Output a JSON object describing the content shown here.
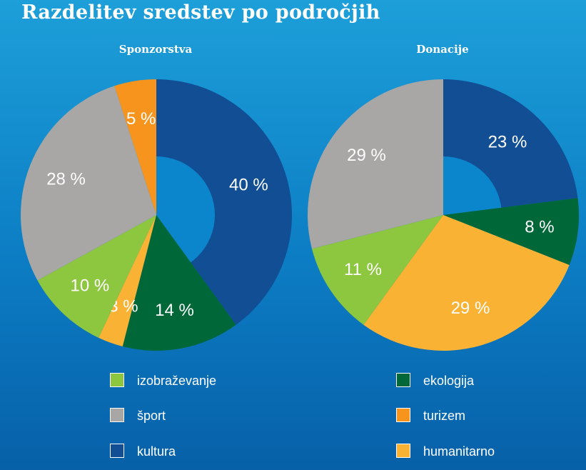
{
  "title": "Razdelitev sredstev po področjih",
  "colors": {
    "izobrazevanje": "#8dc63f",
    "sport": "#a9a7a5",
    "kultura": "#114e94",
    "ekologija": "#006838",
    "turizem": "#f7941d",
    "humanitarno": "#f9b233",
    "hole": "#0b86cc"
  },
  "legend": [
    {
      "label": "izobraževanje",
      "color": "#8dc63f"
    },
    {
      "label": "ekologija",
      "color": "#006838"
    },
    {
      "label": "šport",
      "color": "#a9a7a5"
    },
    {
      "label": "turizem",
      "color": "#f7941d"
    },
    {
      "label": "kultura",
      "color": "#114e94"
    },
    {
      "label": "humanitarno",
      "color": "#f9b233"
    }
  ],
  "chart_data": [
    {
      "type": "pie",
      "title": "Sponzorstva",
      "donut": true,
      "slices": [
        {
          "category": "kultura",
          "value": 40,
          "label": "40 %",
          "color": "#114e94"
        },
        {
          "category": "ekologija",
          "value": 14,
          "label": "14 %",
          "color": "#006838"
        },
        {
          "category": "humanitarno",
          "value": 3,
          "label": "3 %",
          "color": "#f9b233"
        },
        {
          "category": "izobraževanje",
          "value": 10,
          "label": "10 %",
          "color": "#8dc63f"
        },
        {
          "category": "šport",
          "value": 28,
          "label": "28 %",
          "color": "#a9a7a5"
        },
        {
          "category": "turizem",
          "value": 5,
          "label": "5 %",
          "color": "#f7941d"
        }
      ]
    },
    {
      "type": "pie",
      "title": "Donacije",
      "donut": true,
      "slices": [
        {
          "category": "kultura",
          "value": 23,
          "label": "23 %",
          "color": "#114e94"
        },
        {
          "category": "ekologija",
          "value": 8,
          "label": "8 %",
          "color": "#006838"
        },
        {
          "category": "humanitarno",
          "value": 29,
          "label": "29 %",
          "color": "#f9b233"
        },
        {
          "category": "izobraževanje",
          "value": 11,
          "label": "11 %",
          "color": "#8dc63f"
        },
        {
          "category": "šport",
          "value": 29,
          "label": "29 %",
          "color": "#a9a7a5"
        }
      ]
    }
  ]
}
